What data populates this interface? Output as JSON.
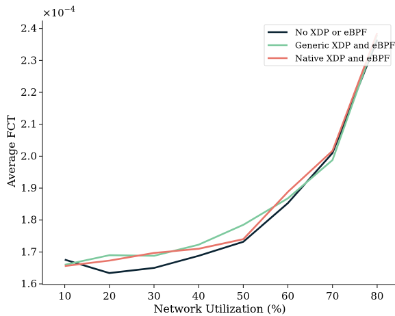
{
  "chart_data": {
    "type": "line",
    "title": "",
    "xlabel": "Network Utilization (%)",
    "ylabel": "Average FCT",
    "y_multiplier_label": "×10",
    "y_multiplier_exponent": "−4",
    "x": [
      10,
      20,
      30,
      40,
      50,
      60,
      70,
      80
    ],
    "x_ticks": [
      "10",
      "20",
      "30",
      "40",
      "50",
      "60",
      "70",
      "80"
    ],
    "y_ticks": [
      "1.6",
      "1.7",
      "1.8",
      "1.9",
      "2.0",
      "2.1",
      "2.2",
      "2.3",
      "2.4"
    ],
    "xlim": [
      5,
      84
    ],
    "ylim": [
      1.598,
      2.425
    ],
    "grid": false,
    "legend_position": "top-right",
    "series": [
      {
        "name": "No XDP or eBPF",
        "color": "#0b2433",
        "values": [
          1.676,
          1.634,
          1.65,
          1.688,
          1.732,
          1.853,
          2.01,
          2.365
        ]
      },
      {
        "name": "Generic XDP and eBPF",
        "color": "#7dc99e",
        "values": [
          1.66,
          1.69,
          1.688,
          1.723,
          1.785,
          1.868,
          1.988,
          2.38
        ]
      },
      {
        "name": "Native XDP and eBPF",
        "color": "#e8756a",
        "values": [
          1.656,
          1.673,
          1.697,
          1.71,
          1.74,
          1.888,
          2.017,
          2.386
        ]
      }
    ]
  }
}
